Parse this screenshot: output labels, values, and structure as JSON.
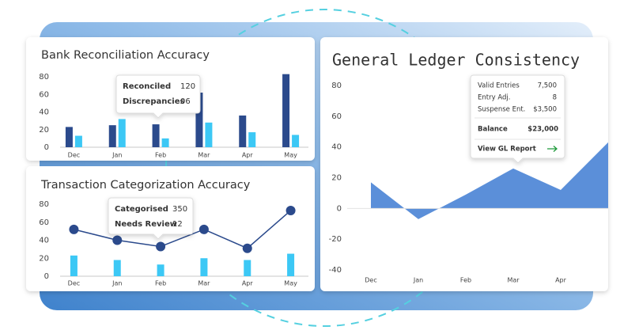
{
  "chart_data": [
    {
      "type": "bar",
      "title": "Bank Reconciliation Accuracy",
      "categories": [
        "Dec",
        "Jan",
        "Feb",
        "Mar",
        "Apr",
        "May"
      ],
      "series": [
        {
          "color": "#2b4a8c",
          "values": [
            23,
            25,
            26,
            62,
            36,
            83
          ]
        },
        {
          "color": "#3cc8f5",
          "values": [
            13,
            32,
            10,
            28,
            17,
            14
          ]
        }
      ],
      "ylim": [
        0,
        80
      ],
      "yticks": [
        0,
        20,
        40,
        60,
        80
      ],
      "grid": false,
      "tooltip": {
        "rows": [
          {
            "label": "Reconciled",
            "value": "120",
            "color": "#1e9a3a"
          },
          {
            "label": "Discrepancies",
            "value": "06",
            "color": "#d83a3a"
          }
        ]
      }
    },
    {
      "type": "combo",
      "title": "Transaction Categorization Accuracy",
      "categories": [
        "Dec",
        "Jan",
        "Feb",
        "Mar",
        "Apr",
        "May"
      ],
      "series": [
        {
          "type": "bar",
          "color": "#3cc8f5",
          "values": [
            23,
            18,
            13,
            20,
            18,
            25
          ]
        },
        {
          "type": "line",
          "color": "#2b4a8c",
          "values": [
            52,
            40,
            33,
            52,
            31,
            73
          ]
        }
      ],
      "ylim": [
        0,
        80
      ],
      "yticks": [
        0,
        20,
        40,
        60,
        80
      ],
      "grid": false,
      "tooltip": {
        "rows": [
          {
            "label": "Categorised",
            "value": "350",
            "color": "#1e9a3a"
          },
          {
            "label": "Needs Review",
            "value": "12",
            "color": "#d83a3a"
          }
        ]
      }
    },
    {
      "type": "area",
      "title": "General Ledger Consistency",
      "categories": [
        "Dec",
        "Jan",
        "Feb",
        "Mar",
        "Apr",
        null
      ],
      "values": [
        17,
        -7,
        9,
        26,
        12,
        43
      ],
      "color": "#5b8fd9",
      "ylim": [
        -40,
        80
      ],
      "yticks": [
        -40,
        -20,
        0,
        20,
        40,
        60,
        80
      ],
      "grid": false,
      "tooltip": {
        "rows": [
          {
            "label": "Valid Entries",
            "value": "7,500",
            "color": "#333333"
          },
          {
            "label": "Entry Adj.",
            "value": "8",
            "color": "#333333"
          },
          {
            "label": "Suspense Ent.",
            "value": "$3,500",
            "color": "#d83a3a"
          }
        ],
        "total": {
          "label": "Balance",
          "value": "$23,000",
          "label_color": "#2b4a8c",
          "value_color": "#1e9a3a"
        },
        "link": "View GL Report"
      }
    }
  ]
}
